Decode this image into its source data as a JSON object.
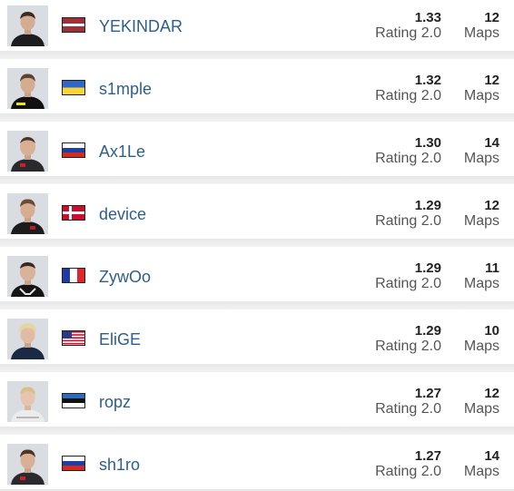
{
  "players": [
    {
      "name": "YEKINDAR",
      "country": "Latvia",
      "rating": "1.33",
      "rating_label": "Rating 2.0",
      "maps": "12",
      "maps_label": "Maps",
      "flag_icon": "latvia-flag-icon",
      "jersey_color": "#1d1d1f"
    },
    {
      "name": "s1mple",
      "country": "Ukraine",
      "rating": "1.32",
      "rating_label": "Rating 2.0",
      "maps": "12",
      "maps_label": "Maps",
      "flag_icon": "ukraine-flag-icon",
      "jersey_color": "#111111"
    },
    {
      "name": "Ax1Le",
      "country": "Russia",
      "rating": "1.30",
      "rating_label": "Rating 2.0",
      "maps": "14",
      "maps_label": "Maps",
      "flag_icon": "russia-flag-icon",
      "jersey_color": "#2a2a2e"
    },
    {
      "name": "device",
      "country": "Denmark",
      "rating": "1.29",
      "rating_label": "Rating 2.0",
      "maps": "12",
      "maps_label": "Maps",
      "flag_icon": "denmark-flag-icon",
      "jersey_color": "#1c1c1c"
    },
    {
      "name": "ZywOo",
      "country": "France",
      "rating": "1.29",
      "rating_label": "Rating 2.0",
      "maps": "11",
      "maps_label": "Maps",
      "flag_icon": "france-flag-icon",
      "jersey_color": "#151515"
    },
    {
      "name": "EliGE",
      "country": "United States",
      "rating": "1.29",
      "rating_label": "Rating 2.0",
      "maps": "10",
      "maps_label": "Maps",
      "flag_icon": "usa-flag-icon",
      "jersey_color": "#1b2a44"
    },
    {
      "name": "ropz",
      "country": "Estonia",
      "rating": "1.27",
      "rating_label": "Rating 2.0",
      "maps": "12",
      "maps_label": "Maps",
      "flag_icon": "estonia-flag-icon",
      "jersey_color": "#e8e8e8"
    },
    {
      "name": "sh1ro",
      "country": "Russia",
      "rating": "1.27",
      "rating_label": "Rating 2.0",
      "maps": "14",
      "maps_label": "Maps",
      "flag_icon": "russia-flag-icon",
      "jersey_color": "#2a2a2e"
    }
  ]
}
